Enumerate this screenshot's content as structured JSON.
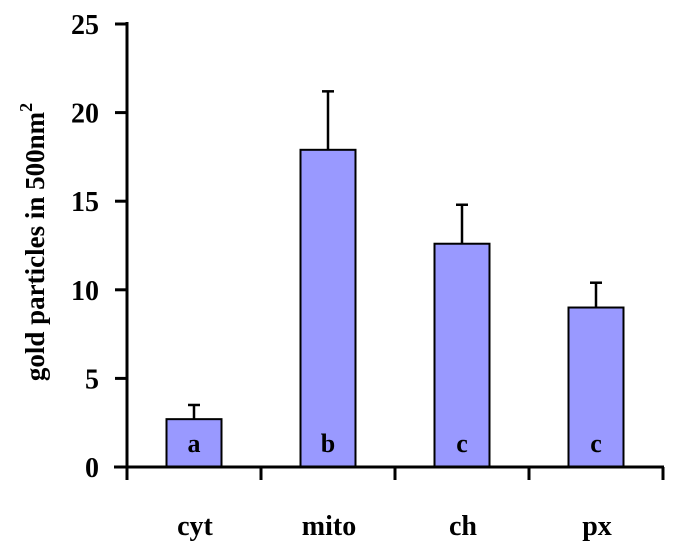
{
  "chart_data": {
    "type": "bar",
    "title": "",
    "xlabel": "",
    "ylabel": "gold particles in 500nm",
    "ylabel_superscript": "2",
    "ylim": [
      0,
      25
    ],
    "yticks": [
      0,
      5,
      10,
      15,
      20,
      25
    ],
    "grid": false,
    "legend": null,
    "categories": [
      "cyt",
      "mito",
      "ch",
      "px"
    ],
    "values": [
      2.7,
      17.9,
      12.6,
      9.0
    ],
    "error_upper": [
      3.5,
      21.2,
      14.8,
      10.4
    ],
    "errors": [
      0.8,
      3.3,
      2.2,
      1.4
    ],
    "annotations": [
      "a",
      "b",
      "c",
      "c"
    ],
    "bar_color": "#9999FF",
    "edge_color": "#000000"
  }
}
